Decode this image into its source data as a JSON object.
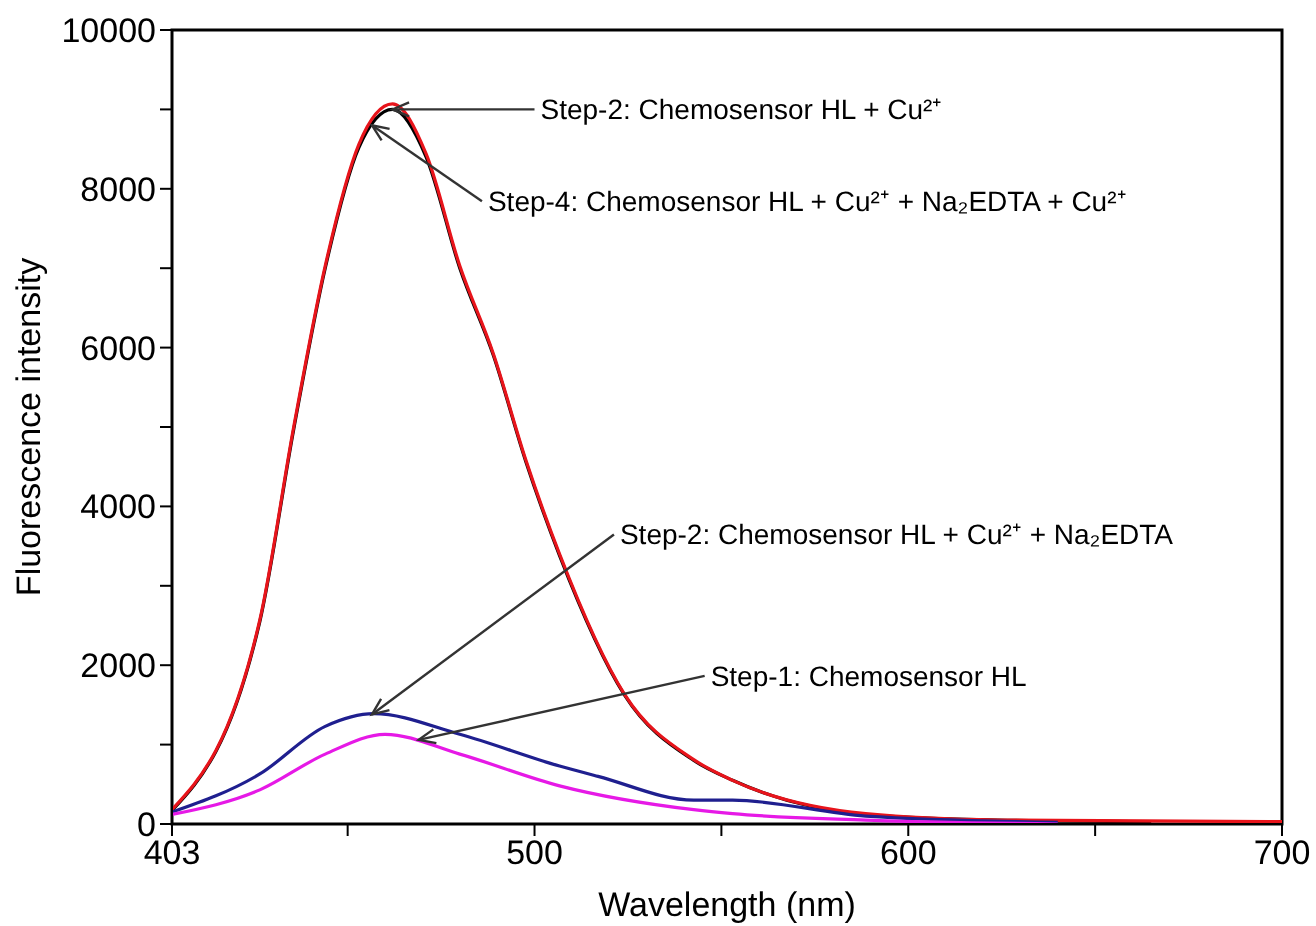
{
  "chart_data": {
    "type": "line",
    "xlabel": "Wavelength (nm)",
    "ylabel": "Fluorescence intensity",
    "xlim": [
      403,
      700
    ],
    "xticks": [
      403,
      {
        "value": 450,
        "label": null
      },
      500,
      {
        "value": 550,
        "label": null
      },
      600,
      {
        "value": 650,
        "label": null
      },
      700
    ],
    "ylim": [
      0,
      10000
    ],
    "yticks": [
      0,
      {
        "value": 1000,
        "label": null
      },
      2000,
      {
        "value": 3000,
        "label": null
      },
      4000,
      {
        "value": 5000,
        "label": null
      },
      6000,
      {
        "value": 7000,
        "label": null
      },
      8000,
      {
        "value": 9000,
        "label": null
      },
      10000
    ],
    "marker": "none",
    "line_style": "solid",
    "series": [
      {
        "color": "#000000",
        "x": [
          403,
          426.5,
          435.6,
          444,
          453,
          462,
          471,
          480,
          489,
          497.7,
          506.7,
          524,
          542.6,
          553,
          588.6,
          624,
          665
        ],
        "values": [
          170,
          2550,
          4980,
          7000,
          8520,
          9000,
          8400,
          7000,
          5900,
          4560,
          3380,
          1630,
          800,
          550,
          120,
          50,
          30
        ]
      },
      {
        "color": "#e8141b",
        "x": [
          403,
          426.5,
          435.6,
          444,
          453,
          462,
          471,
          480,
          489,
          497.7,
          506.7,
          524,
          542.6,
          553,
          588.6,
          624,
          700
        ],
        "values": [
          180,
          2570,
          5010,
          7030,
          8560,
          9070,
          8440,
          7030,
          5920,
          4580,
          3400,
          1640,
          810,
          550,
          130,
          50,
          30
        ]
      },
      {
        "color": "#1f1f8f",
        "x": [
          403,
          426.5,
          444,
          457,
          480,
          506.7,
          517,
          542.6,
          553,
          588.6,
          640
        ],
        "values": [
          150,
          630,
          1230,
          1390,
          1130,
          730,
          600,
          300,
          300,
          100,
          20
        ]
      },
      {
        "color": "#e619e6",
        "x": [
          403,
          426.5,
          444,
          460,
          480,
          506.7,
          542.6,
          553,
          588.6,
          640
        ],
        "values": [
          120,
          430,
          880,
          1130,
          880,
          480,
          180,
          130,
          50,
          0
        ]
      }
    ],
    "annotations": [
      {
        "text": "Step-2: Chemosensor HL + Cu²⁺",
        "x": 462,
        "y": 9000
      },
      {
        "text": "Step-4: Chemosensor HL + Cu²⁺ + Na₂EDTA + Cu²⁺",
        "x": 456.5,
        "y": 8800
      },
      {
        "text": "Step-2: Chemosensor HL + Cu²⁺ + Na₂EDTA",
        "x": 456.5,
        "y": 1380
      },
      {
        "text": "Step-1: Chemosensor HL",
        "x": 469,
        "y": 1060
      }
    ]
  }
}
